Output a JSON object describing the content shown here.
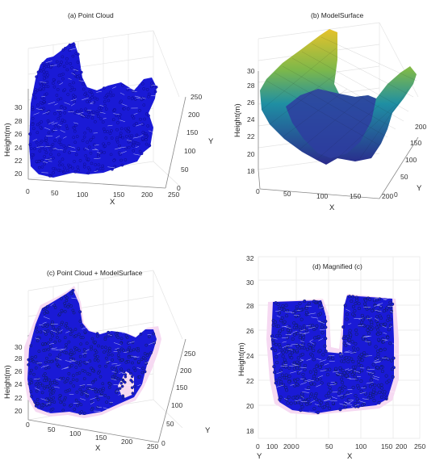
{
  "figure": {
    "panels": [
      {
        "title": "(a) Point Cloud"
      },
      {
        "title": "(b) ModelSurface"
      },
      {
        "title": "(c) Point Cloud + ModelSurface"
      },
      {
        "title": "(d) Magnified (c)"
      }
    ]
  },
  "colors": {
    "points": "#1a1ad6",
    "point_edge": "#0a0a7a",
    "point_edge_dark": "#0b1f33",
    "mesh_lines": "#ffffff",
    "surface_low": "#2a2a8c",
    "surface_mid": "#1f8fa3",
    "surface_high": "#e6c22a",
    "halo": "#f6d9f2"
  },
  "chart_data": [
    {
      "type": "scatter",
      "title": "(a) Point Cloud",
      "xlabel": "X",
      "ylabel": "Y",
      "zlabel": "Height(m)",
      "xticks": [
        "0",
        "50",
        "100",
        "150",
        "200",
        "250"
      ],
      "yticks": [
        "0",
        "50",
        "100",
        "150",
        "200",
        "250"
      ],
      "zticks": [
        "20",
        "22",
        "24",
        "26",
        "28",
        "30"
      ],
      "xlim": [
        0,
        250
      ],
      "ylim": [
        0,
        250
      ],
      "zlim": [
        19,
        32
      ],
      "grid": true,
      "series": [
        {
          "marker": "filled circle",
          "color": "#1a1ad6"
        }
      ]
    },
    {
      "type": "surface",
      "title": "(b) ModelSurface",
      "xlabel": "X",
      "ylabel": "Y",
      "zlabel": "Height(m)",
      "xticks": [
        "0",
        "50",
        "100",
        "150",
        "200"
      ],
      "yticks": [
        "0",
        "50",
        "100",
        "150",
        "200"
      ],
      "zticks": [
        "18",
        "20",
        "22",
        "24",
        "26",
        "28",
        "30"
      ],
      "xlim": [
        0,
        200
      ],
      "ylim": [
        0,
        200
      ],
      "zlim": [
        18,
        31
      ],
      "colormap": "parula",
      "grid": true
    },
    {
      "type": "scatter",
      "title": "(c) Point Cloud + ModelSurface",
      "xlabel": "X",
      "ylabel": "Y",
      "zlabel": "Height(m)",
      "xticks": [
        "0",
        "50",
        "100",
        "150",
        "200",
        "250"
      ],
      "yticks": [
        "0",
        "50",
        "100",
        "150",
        "200",
        "250"
      ],
      "zticks": [
        "20",
        "22",
        "24",
        "26",
        "28",
        "30"
      ],
      "xlim": [
        0,
        250
      ],
      "ylim": [
        0,
        250
      ],
      "zlim": [
        19,
        32
      ],
      "grid": true,
      "series": [
        {
          "marker": "filled circle",
          "color": "#1a1ad6"
        },
        {
          "type": "surface",
          "color": "#f6d9f2"
        }
      ]
    },
    {
      "type": "scatter",
      "title": "(d) Magnified (c)",
      "xlabel": "X",
      "ylabel": "Y",
      "zlabel": "Height(m)",
      "xticks": [
        "0",
        "50",
        "100",
        "150",
        "200",
        "250"
      ],
      "yticks": [
        "0",
        "100",
        "200"
      ],
      "zticks": [
        "18",
        "20",
        "22",
        "24",
        "26",
        "28",
        "30",
        "32"
      ],
      "xlim": [
        0,
        250
      ],
      "ylim": [
        0,
        200
      ],
      "zlim": [
        18,
        32
      ],
      "grid": true,
      "series": [
        {
          "marker": "filled circle",
          "color": "#1a1ad6"
        },
        {
          "type": "surface",
          "color": "#f6d9f2"
        }
      ]
    }
  ]
}
